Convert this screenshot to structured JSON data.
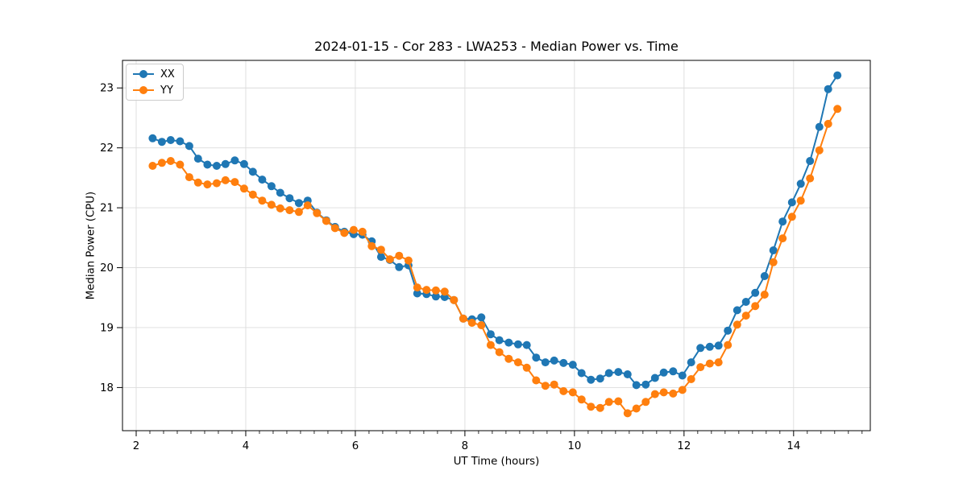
{
  "chart_data": {
    "type": "line",
    "title": "2024-01-15 - Cor 283 - LWA253 - Median Power vs. Time",
    "xlabel": "UT Time (hours)",
    "ylabel": "Median Power (CPU)",
    "xlim": [
      1.75,
      15.4
    ],
    "ylim": [
      17.28,
      23.46
    ],
    "xticks": [
      2,
      4,
      6,
      8,
      10,
      12,
      14
    ],
    "yticks": [
      18,
      19,
      20,
      21,
      22,
      23
    ],
    "x_minor_tick_step": 0.25,
    "grid": true,
    "grid_color": "#dcdcdc",
    "spine_color": "#000000",
    "legend_position": "upper-left",
    "x": [
      2.3,
      2.47,
      2.63,
      2.8,
      2.97,
      3.13,
      3.3,
      3.47,
      3.63,
      3.8,
      3.97,
      4.13,
      4.3,
      4.47,
      4.63,
      4.8,
      4.97,
      5.13,
      5.3,
      5.47,
      5.63,
      5.8,
      5.97,
      6.13,
      6.3,
      6.47,
      6.63,
      6.8,
      6.97,
      7.13,
      7.3,
      7.47,
      7.63,
      7.8,
      7.97,
      8.13,
      8.3,
      8.47,
      8.63,
      8.8,
      8.97,
      9.13,
      9.3,
      9.47,
      9.63,
      9.8,
      9.97,
      10.13,
      10.3,
      10.47,
      10.63,
      10.8,
      10.97,
      11.13,
      11.3,
      11.47,
      11.63,
      11.8,
      11.97,
      12.13,
      12.3,
      12.47,
      12.63,
      12.8,
      12.97,
      13.13,
      13.3,
      13.47,
      13.63,
      13.8,
      13.97,
      14.13,
      14.3,
      14.47,
      14.63,
      14.8
    ],
    "series": [
      {
        "name": "XX",
        "color": "#1f77b4",
        "values": [
          22.16,
          22.1,
          22.13,
          22.11,
          22.03,
          21.82,
          21.72,
          21.7,
          21.73,
          21.79,
          21.73,
          21.6,
          21.47,
          21.36,
          21.25,
          21.16,
          21.08,
          21.12,
          20.92,
          20.79,
          20.68,
          20.6,
          20.56,
          20.55,
          20.44,
          20.18,
          20.13,
          20.01,
          20.04,
          19.57,
          19.56,
          19.52,
          19.51,
          19.46,
          19.15,
          19.14,
          19.17,
          18.89,
          18.79,
          18.75,
          18.72,
          18.71,
          18.5,
          18.42,
          18.45,
          18.41,
          18.38,
          18.24,
          18.13,
          18.15,
          18.24,
          18.26,
          18.22,
          18.04,
          18.05,
          18.16,
          18.25,
          18.27,
          18.2,
          18.42,
          18.66,
          18.68,
          18.7,
          18.95,
          19.29,
          19.43,
          19.58,
          19.86,
          20.29,
          20.77,
          21.09,
          21.4,
          21.78,
          22.35,
          22.98,
          23.21
        ]
      },
      {
        "name": "YY",
        "color": "#ff7f0e",
        "values": [
          21.7,
          21.75,
          21.78,
          21.72,
          21.51,
          21.42,
          21.39,
          21.41,
          21.46,
          21.43,
          21.32,
          21.22,
          21.12,
          21.05,
          20.99,
          20.96,
          20.93,
          21.04,
          20.91,
          20.78,
          20.66,
          20.58,
          20.63,
          20.6,
          20.36,
          20.3,
          20.14,
          20.2,
          20.12,
          19.67,
          19.63,
          19.62,
          19.6,
          19.46,
          19.15,
          19.08,
          19.04,
          18.71,
          18.59,
          18.48,
          18.42,
          18.33,
          18.12,
          18.03,
          18.05,
          17.94,
          17.92,
          17.8,
          17.68,
          17.66,
          17.76,
          17.77,
          17.57,
          17.65,
          17.76,
          17.89,
          17.92,
          17.9,
          17.96,
          18.14,
          18.34,
          18.4,
          18.42,
          18.71,
          19.05,
          19.2,
          19.36,
          19.55,
          20.09,
          20.49,
          20.85,
          21.12,
          21.49,
          21.96,
          22.4,
          22.65
        ]
      }
    ]
  }
}
